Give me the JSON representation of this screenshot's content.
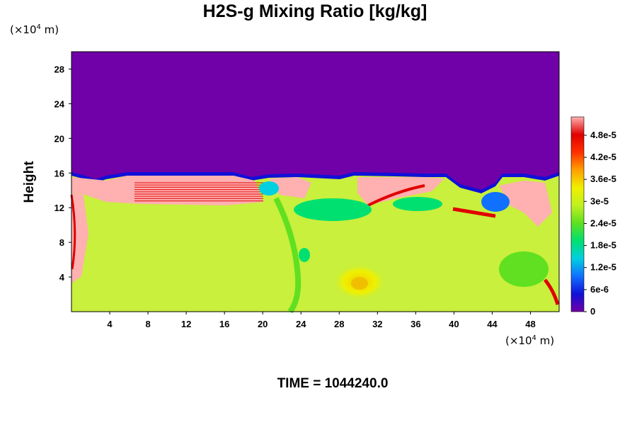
{
  "chart_data": {
    "type": "heatmap",
    "title": "H2S-g Mixing Ratio [kg/kg]",
    "ylabel": "Height",
    "x_unit": {
      "prefix": "(×10",
      "exp": "4",
      "suffix": " m)"
    },
    "y_unit": {
      "prefix": "(×10",
      "exp": "4",
      "suffix": " m)"
    },
    "xlim": [
      0,
      51
    ],
    "ylim": [
      0,
      30
    ],
    "x_ticks": [
      4,
      8,
      12,
      16,
      20,
      24,
      28,
      32,
      36,
      40,
      44,
      48
    ],
    "y_ticks": [
      4,
      8,
      12,
      16,
      20,
      24,
      28
    ],
    "colorbar": {
      "range": [
        0,
        5.3e-05
      ],
      "ticks": [
        {
          "value": 0,
          "label": "0"
        },
        {
          "value": 6e-06,
          "label": "6e-6"
        },
        {
          "value": 1.2e-05,
          "label": "1.2e-5"
        },
        {
          "value": 1.8e-05,
          "label": "1.8e-5"
        },
        {
          "value": 2.4e-05,
          "label": "2.4e-5"
        },
        {
          "value": 3e-05,
          "label": "3e-5"
        },
        {
          "value": 3.6e-05,
          "label": "3.6e-5"
        },
        {
          "value": 4.2e-05,
          "label": "4.2e-5"
        },
        {
          "value": 4.8e-05,
          "label": "4.8e-5"
        }
      ],
      "colors": [
        "#7000a8",
        "#1010d8",
        "#1070ff",
        "#00d0e0",
        "#00e070",
        "#60e020",
        "#c0f020",
        "#f0f000",
        "#ffa000",
        "#ff3000",
        "#e00000",
        "#ffb0b0"
      ]
    },
    "background_value_above": "#7000a8",
    "dominant_value_below": "#c8f03c"
  },
  "footer": "TIME = 1044240.0"
}
